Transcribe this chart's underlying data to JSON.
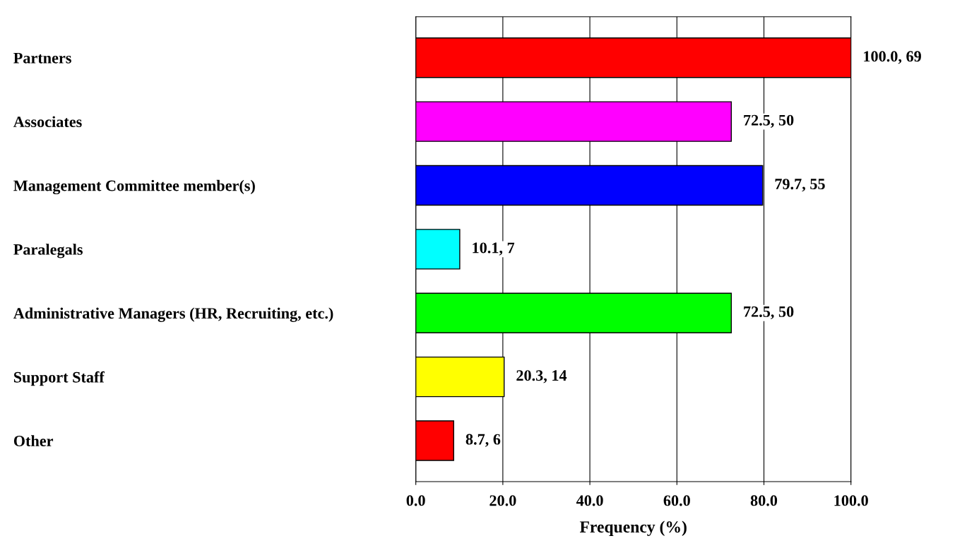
{
  "chart_data": {
    "type": "bar",
    "orientation": "horizontal",
    "xlabel": "Frequency (%)",
    "categories": [
      "Partners",
      "Associates",
      "Management Committee member(s)",
      "Paralegals",
      "Administrative Managers (HR, Recruiting, etc.)",
      "Support Staff",
      "Other"
    ],
    "values": [
      100.0,
      72.5,
      79.7,
      10.1,
      72.5,
      20.3,
      8.7
    ],
    "colors": [
      "#ff0000",
      "#ff00ff",
      "#0000ff",
      "#00ffff",
      "#00ff00",
      "#ffff00",
      "#ff0000"
    ],
    "value_labels": [
      "100.0, 69",
      "72.5, 50",
      "79.7, 55",
      "10.1, 7",
      "72.5, 50",
      "20.3, 14",
      "8.7, 6"
    ],
    "xlim": [
      0,
      100
    ],
    "xticks": [
      {
        "value": 0,
        "label": "0.0"
      },
      {
        "value": 20,
        "label": "20.0"
      },
      {
        "value": 40,
        "label": "40.0"
      },
      {
        "value": 60,
        "label": "60.0"
      },
      {
        "value": 80,
        "label": "80.0"
      },
      {
        "value": 100,
        "label": "100.0"
      }
    ],
    "grid": "x",
    "legend": false
  }
}
